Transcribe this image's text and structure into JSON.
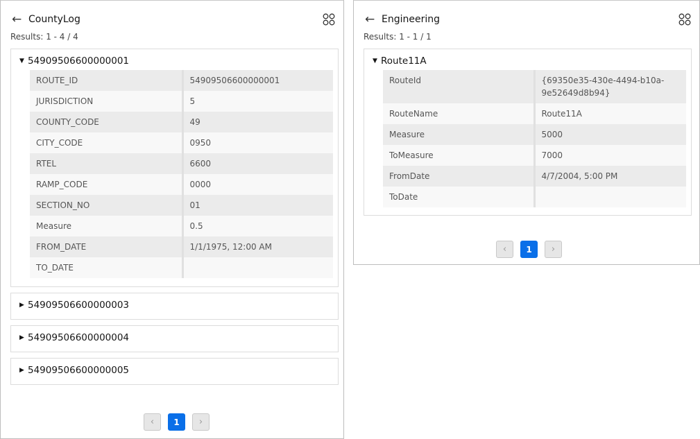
{
  "left": {
    "title": "CountyLog",
    "results": "Results: 1 - 4 / 4",
    "expanded": {
      "header": "54909506600000001",
      "rows": [
        {
          "k": "ROUTE_ID",
          "v": "54909506600000001"
        },
        {
          "k": "JURISDICTION",
          "v": "5"
        },
        {
          "k": "COUNTY_CODE",
          "v": "49"
        },
        {
          "k": "CITY_CODE",
          "v": "0950"
        },
        {
          "k": "RTEL",
          "v": "6600"
        },
        {
          "k": "RAMP_CODE",
          "v": "0000"
        },
        {
          "k": "SECTION_NO",
          "v": "01"
        },
        {
          "k": "Measure",
          "v": "0.5"
        },
        {
          "k": "FROM_DATE",
          "v": "1/1/1975, 12:00 AM"
        },
        {
          "k": "TO_DATE",
          "v": ""
        }
      ]
    },
    "collapsed": [
      "54909506600000003",
      "54909506600000004",
      "54909506600000005"
    ],
    "page": "1"
  },
  "right": {
    "title": "Engineering",
    "results": "Results: 1 - 1 / 1",
    "expanded": {
      "header": "Route11A",
      "rows": [
        {
          "k": "RouteId",
          "v": "{69350e35-430e-4494-b10a-9e52649d8b94}"
        },
        {
          "k": "RouteName",
          "v": "Route11A"
        },
        {
          "k": "Measure",
          "v": "5000"
        },
        {
          "k": "ToMeasure",
          "v": "7000"
        },
        {
          "k": "FromDate",
          "v": "4/7/2004, 5:00 PM"
        },
        {
          "k": "ToDate",
          "v": ""
        }
      ]
    },
    "page": "1"
  },
  "icons": {
    "back": "arrow-left-icon",
    "grid": "four-circles-grid-icon",
    "expand": "triangle-down-icon",
    "collapse": "triangle-right-icon",
    "prev": "chevron-left-icon",
    "next": "chevron-right-icon"
  },
  "colors": {
    "accent": "#0a6fe8"
  }
}
